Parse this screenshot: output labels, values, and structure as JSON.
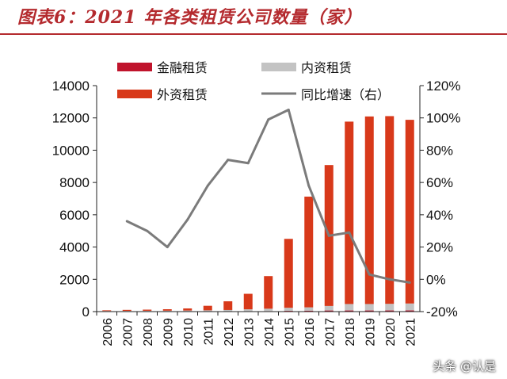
{
  "title": "图表6：2021 年各类租赁公司数量（家）",
  "watermark": "头条 @认是",
  "colors": {
    "title": "#b42a2e",
    "financial": "#c0142c",
    "domestic": "#c3c3c3",
    "foreign": "#d8391a",
    "growth": "#7b7b7b"
  },
  "chart_data": {
    "type": "bar",
    "stacked": true,
    "categories": [
      "2006",
      "2007",
      "2008",
      "2009",
      "2010",
      "2011",
      "2012",
      "2013",
      "2014",
      "2015",
      "2016",
      "2017",
      "2018",
      "2019",
      "2020",
      "2021"
    ],
    "series": [
      {
        "name": "金融租赁",
        "axis": "left",
        "values": [
          10,
          12,
          12,
          12,
          17,
          20,
          20,
          23,
          30,
          47,
          59,
          69,
          70,
          70,
          71,
          72
        ]
      },
      {
        "name": "内资租赁",
        "axis": "left",
        "values": [
          30,
          35,
          40,
          45,
          50,
          60,
          80,
          120,
          150,
          190,
          205,
          280,
          400,
          400,
          410,
          430
        ]
      },
      {
        "name": "外资租赁",
        "axis": "left",
        "values": [
          40,
          60,
          70,
          90,
          130,
          280,
          540,
          960,
          2020,
          4270,
          6860,
          8730,
          11300,
          11620,
          11630,
          11380
        ]
      },
      {
        "name": "同比增速（右）",
        "axis": "right",
        "type": "line",
        "values": [
          null,
          36,
          30,
          20,
          37,
          58,
          74,
          72,
          99,
          105,
          58,
          27,
          29,
          3,
          0,
          -2
        ]
      }
    ],
    "y_left": {
      "min": 0,
      "max": 14000,
      "ticks": [
        "0",
        "2000",
        "4000",
        "6000",
        "8000",
        "10000",
        "12000",
        "14000"
      ]
    },
    "y_right": {
      "min": -20,
      "max": 120,
      "ticks": [
        "-20%",
        "0%",
        "20%",
        "40%",
        "60%",
        "80%",
        "100%",
        "120%"
      ]
    },
    "legend_position": "top-left inside plot, two columns"
  }
}
